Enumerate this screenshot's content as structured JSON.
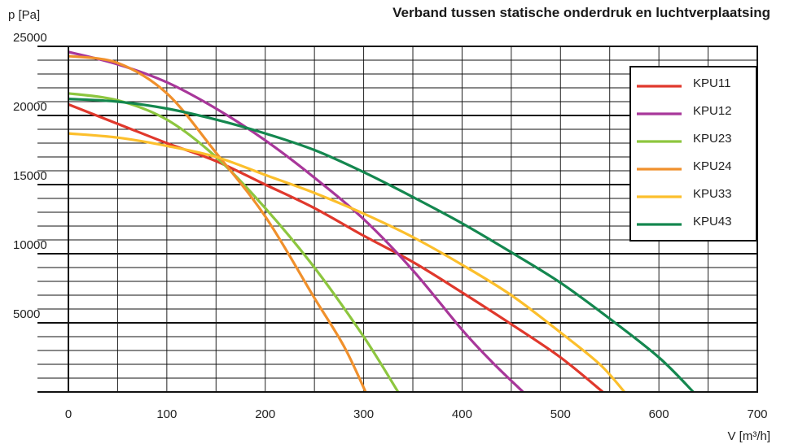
{
  "chart_data": {
    "type": "line",
    "title": "Verband tussen statische onderdruk en luchtverplaatsing",
    "xlabel": "V [m³/h]",
    "ylabel": "p [Pa]",
    "xlim": [
      0,
      700
    ],
    "ylim": [
      0,
      25000
    ],
    "x_ticks": [
      "0",
      "100",
      "200",
      "300",
      "400",
      "500",
      "600",
      "700"
    ],
    "y_ticks": [
      "5000",
      "10000",
      "15000",
      "20000",
      "25000"
    ],
    "grid": true,
    "legend_position": "top-right",
    "series": [
      {
        "name": "KPU11",
        "color": "#e0382c",
        "x": [
          0,
          50,
          100,
          150,
          200,
          250,
          300,
          350,
          400,
          450,
          500,
          543
        ],
        "y": [
          20800,
          19400,
          18000,
          16700,
          15000,
          13300,
          11300,
          9400,
          7200,
          4900,
          2500,
          0
        ]
      },
      {
        "name": "KPU12",
        "color": "#a8379a",
        "x": [
          0,
          50,
          100,
          150,
          200,
          250,
          300,
          350,
          400,
          430,
          462
        ],
        "y": [
          24600,
          23700,
          22400,
          20500,
          18200,
          15500,
          12500,
          8800,
          4500,
          2200,
          0
        ]
      },
      {
        "name": "KPU23",
        "color": "#8dc63f",
        "x": [
          0,
          50,
          100,
          150,
          200,
          250,
          300,
          335
        ],
        "y": [
          21600,
          21100,
          19700,
          17000,
          13300,
          9000,
          4000,
          0
        ]
      },
      {
        "name": "KPU24",
        "color": "#f0902c",
        "x": [
          0,
          50,
          100,
          150,
          200,
          250,
          280,
          302
        ],
        "y": [
          24300,
          23800,
          21600,
          17300,
          12700,
          6800,
          3300,
          0
        ]
      },
      {
        "name": "KPU33",
        "color": "#fcbf2c",
        "x": [
          0,
          50,
          100,
          150,
          200,
          250,
          300,
          350,
          400,
          450,
          500,
          540,
          565
        ],
        "y": [
          18700,
          18400,
          17800,
          17000,
          15700,
          14400,
          12900,
          11200,
          9200,
          7000,
          4300,
          2000,
          0
        ]
      },
      {
        "name": "KPU43",
        "color": "#14874f",
        "x": [
          0,
          50,
          100,
          150,
          200,
          250,
          300,
          350,
          400,
          450,
          500,
          550,
          600,
          635
        ],
        "y": [
          21200,
          21000,
          20500,
          19700,
          18700,
          17500,
          15900,
          14100,
          12200,
          10100,
          7900,
          5300,
          2500,
          0
        ]
      }
    ]
  }
}
